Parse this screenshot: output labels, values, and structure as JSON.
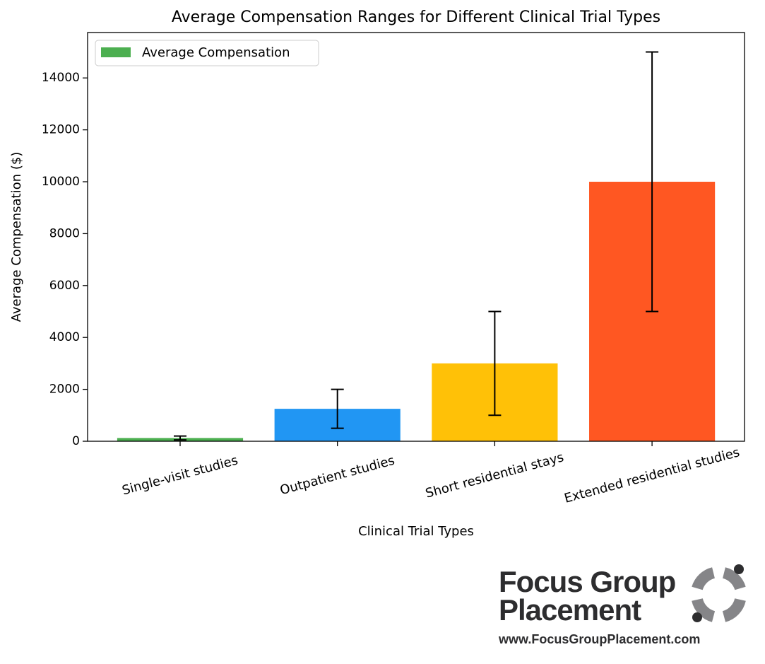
{
  "chart_data": {
    "type": "bar",
    "title": "Average Compensation Ranges for Different Clinical Trial Types",
    "xlabel": "Clinical Trial Types",
    "ylabel": "Average Compensation ($)",
    "categories": [
      "Single-visit studies",
      "Outpatient studies",
      "Short residential stays",
      "Extended residential studies"
    ],
    "series": [
      {
        "name": "Average Compensation",
        "values": [
          125,
          1250,
          3000,
          10000
        ],
        "errors": [
          75,
          750,
          2000,
          5000
        ],
        "colors": [
          "#4caf50",
          "#2196f3",
          "#ffc107",
          "#ff5722"
        ]
      }
    ],
    "ylim": [
      0,
      15750
    ],
    "yticks": [
      0,
      2000,
      4000,
      6000,
      8000,
      10000,
      12000,
      14000
    ],
    "legend": "upper left"
  },
  "logo": {
    "line1": "Focus Group",
    "line2": "Placement",
    "url": "www.FocusGroupPlacement.com"
  }
}
